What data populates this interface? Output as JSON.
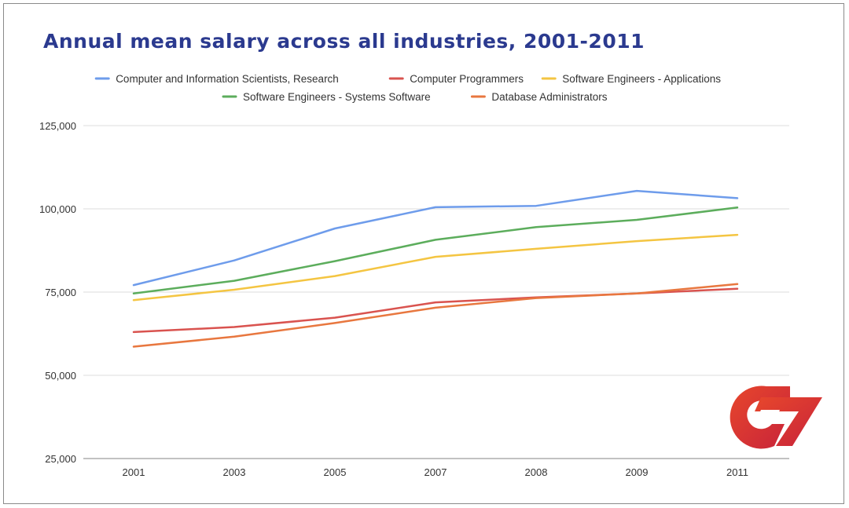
{
  "chart_data": {
    "type": "line",
    "title": "Annual mean salary across all industries, 2001-2011",
    "xlabel": "",
    "ylabel": "",
    "categories": [
      "2001",
      "2003",
      "2005",
      "2007",
      "2008",
      "2009",
      "2011"
    ],
    "ylim": [
      25000,
      125000
    ],
    "yticks": [
      25000,
      50000,
      75000,
      100000,
      125000
    ],
    "ytick_labels": [
      "25,000",
      "50,000",
      "75,000",
      "100,000",
      "125,000"
    ],
    "grid": true,
    "legend_position": "top",
    "series": [
      {
        "name": "Computer and Information Scientists, Research",
        "color": "#6e9ceb",
        "values": [
          77100,
          84500,
          94100,
          100500,
          100900,
          105400,
          103200
        ]
      },
      {
        "name": "Computer Programmers",
        "color": "#d9534f",
        "values": [
          63000,
          64500,
          67300,
          71900,
          73400,
          74600,
          76000
        ]
      },
      {
        "name": "Software Engineers - Applications",
        "color": "#f4c542",
        "values": [
          72600,
          75700,
          79800,
          85600,
          88000,
          90300,
          92200
        ]
      },
      {
        "name": "Software Engineers - Systems Software",
        "color": "#5cad5c",
        "values": [
          74600,
          78400,
          84300,
          90700,
          94500,
          96700,
          100400
        ]
      },
      {
        "name": "Database Administrators",
        "color": "#e8773f",
        "values": [
          58600,
          61600,
          65700,
          70300,
          73200,
          74600,
          77400
        ]
      }
    ]
  },
  "logo": {
    "name": "c7-logo",
    "colors": [
      "#e7472c",
      "#c8233a"
    ]
  }
}
